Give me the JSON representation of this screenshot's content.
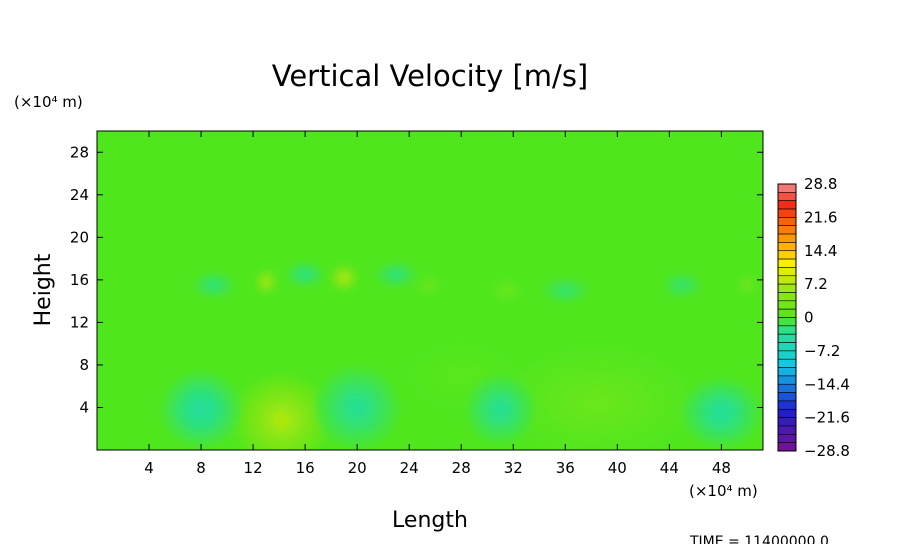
{
  "chart_data": {
    "type": "heatmap",
    "title": "Vertical Velocity [m/s]",
    "xlabel": "Length",
    "ylabel": "Height",
    "x_unit": "(×10⁴ m)",
    "y_unit": "(×10⁴ m)",
    "xlim": [
      0,
      51.2
    ],
    "ylim": [
      0,
      30
    ],
    "x_ticks": [
      4,
      8,
      12,
      16,
      20,
      24,
      28,
      32,
      36,
      40,
      44,
      48
    ],
    "y_ticks": [
      4,
      8,
      12,
      16,
      20,
      24,
      28
    ],
    "colorbar": {
      "min": -28.8,
      "max": 28.8,
      "step": 1.8,
      "labels": [
        "28.8",
        "21.6",
        "14.4",
        "7.2",
        "0",
        "−7.2",
        "−14.4",
        "−21.6",
        "−28.8"
      ],
      "label_values": [
        28.8,
        21.6,
        14.4,
        7.2,
        0,
        -7.2,
        -14.4,
        -21.6,
        -28.8
      ]
    },
    "background_value": 0,
    "features": [
      {
        "kind": "updraft",
        "x": 14.2,
        "y": 2.8,
        "sx": 3.6,
        "sy": 4.2,
        "amp": 8.6
      },
      {
        "kind": "updraft",
        "x": 38.5,
        "y": 4.5,
        "sx": 7.0,
        "sy": 5.0,
        "amp": 2.4
      },
      {
        "kind": "updraft",
        "x": 28.0,
        "y": 7.0,
        "sx": 4.0,
        "sy": 3.0,
        "amp": 1.0
      },
      {
        "kind": "updraft",
        "x": 13.0,
        "y": 15.8,
        "sx": 0.9,
        "sy": 1.2,
        "amp": 7.5
      },
      {
        "kind": "updraft",
        "x": 19.0,
        "y": 16.2,
        "sx": 1.1,
        "sy": 1.3,
        "amp": 8.5
      },
      {
        "kind": "updraft",
        "x": 25.5,
        "y": 15.5,
        "sx": 1.0,
        "sy": 1.0,
        "amp": 2.5
      },
      {
        "kind": "updraft",
        "x": 31.5,
        "y": 15.0,
        "sx": 1.2,
        "sy": 1.1,
        "amp": 2.5
      },
      {
        "kind": "updraft",
        "x": 50.0,
        "y": 15.5,
        "sx": 0.8,
        "sy": 1.0,
        "amp": 3.0
      },
      {
        "kind": "downdraft",
        "x": 8.0,
        "y": 3.8,
        "sx": 3.0,
        "sy": 3.5,
        "amp": -4.8
      },
      {
        "kind": "downdraft",
        "x": 20.0,
        "y": 4.0,
        "sx": 3.2,
        "sy": 3.8,
        "amp": -4.0
      },
      {
        "kind": "downdraft",
        "x": 31.0,
        "y": 3.8,
        "sx": 2.6,
        "sy": 3.2,
        "amp": -4.0
      },
      {
        "kind": "downdraft",
        "x": 48.0,
        "y": 3.5,
        "sx": 3.0,
        "sy": 3.2,
        "amp": -4.4
      },
      {
        "kind": "downdraft",
        "x": 9.0,
        "y": 15.5,
        "sx": 1.6,
        "sy": 1.2,
        "amp": -3.0
      },
      {
        "kind": "downdraft",
        "x": 16.0,
        "y": 16.5,
        "sx": 1.5,
        "sy": 1.2,
        "amp": -3.2
      },
      {
        "kind": "downdraft",
        "x": 23.0,
        "y": 16.5,
        "sx": 1.6,
        "sy": 1.2,
        "amp": -3.0
      },
      {
        "kind": "downdraft",
        "x": 36.0,
        "y": 15.0,
        "sx": 1.8,
        "sy": 1.2,
        "amp": -2.5
      },
      {
        "kind": "downdraft",
        "x": 45.0,
        "y": 15.5,
        "sx": 1.5,
        "sy": 1.2,
        "amp": -2.5
      }
    ],
    "time_label": "TIME =  11400000.0"
  },
  "colors": {
    "frame": "#000000",
    "background_field": "#4fe61e"
  }
}
